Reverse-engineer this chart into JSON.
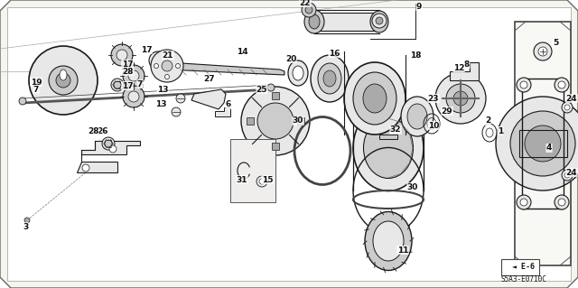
{
  "background_color": "#ffffff",
  "border_color": "#888888",
  "diagram_code": "S5A3-E0710C",
  "ref_code": "E-6",
  "line_color": "#1a1a1a",
  "fill_light": "#e8e8e8",
  "fill_mid": "#cccccc",
  "fill_dark": "#aaaaaa"
}
